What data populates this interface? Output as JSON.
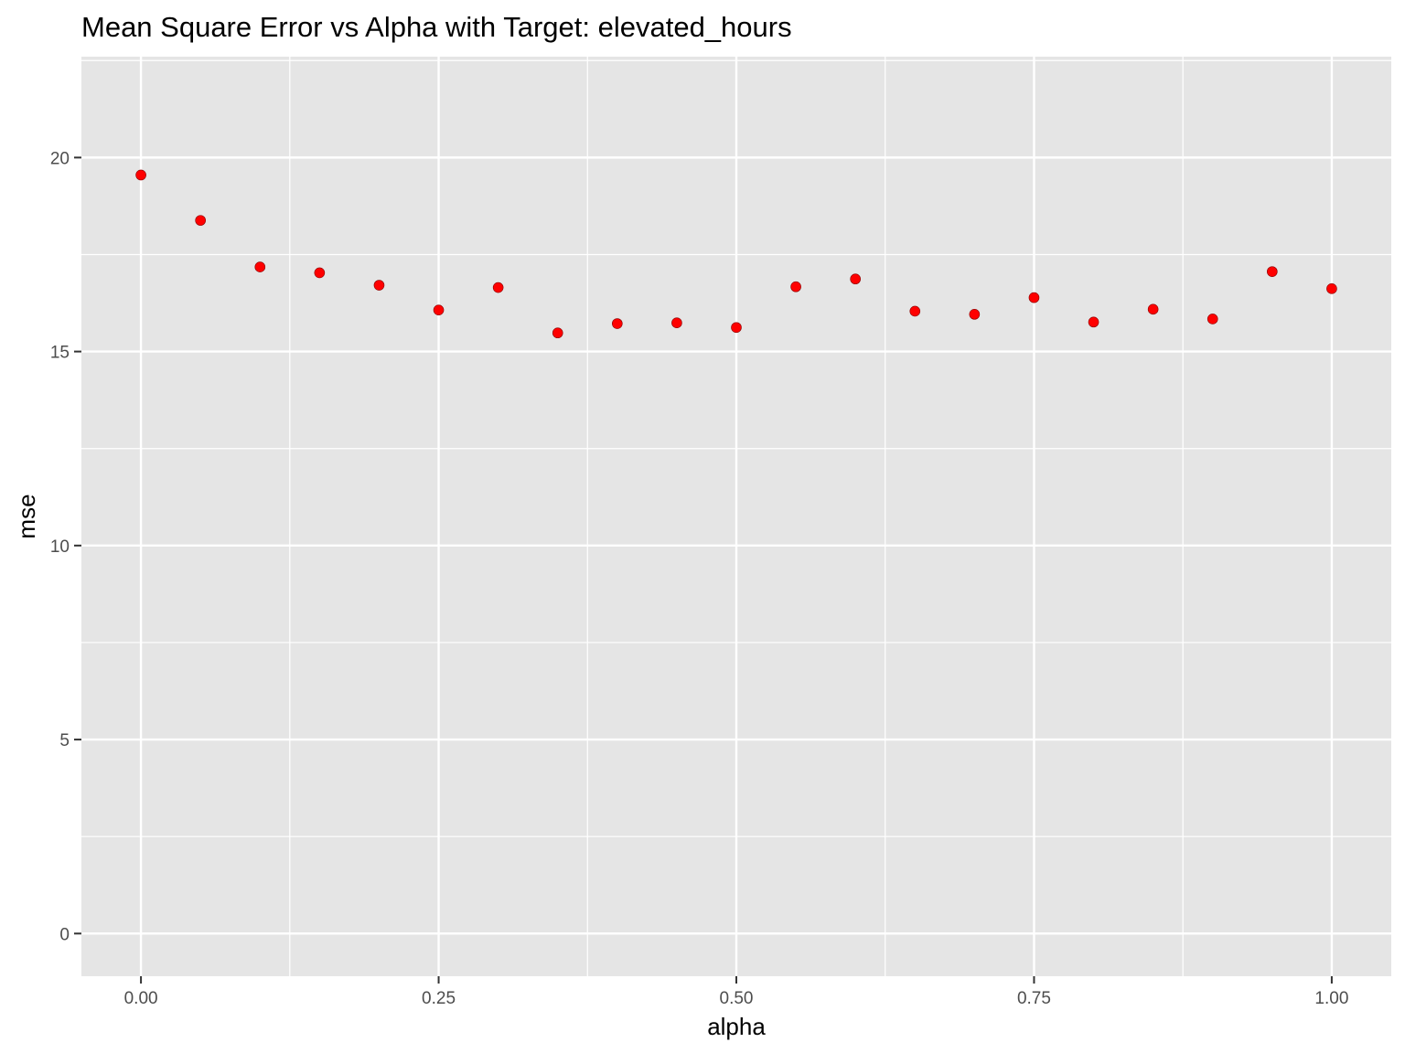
{
  "chart_data": {
    "type": "scatter",
    "title": "Mean Square Error vs Alpha with Target: elevated_hours",
    "xlabel": "alpha",
    "ylabel": "mse",
    "xlim": [
      -0.05,
      1.05
    ],
    "ylim": [
      -1.1,
      22.6
    ],
    "x_ticks": [
      0,
      0.25,
      0.5,
      0.75,
      1
    ],
    "x_tick_labels": [
      "0.00",
      "0.25",
      "0.50",
      "0.75",
      "1.00"
    ],
    "y_ticks": [
      0,
      5,
      10,
      15,
      20
    ],
    "y_tick_labels": [
      "0",
      "5",
      "10",
      "15",
      "20"
    ],
    "grid": true,
    "point_color": "#ff0000",
    "panel_color": "#e5e5e5",
    "x": [
      0,
      0.05,
      0.1,
      0.15,
      0.2,
      0.25,
      0.3,
      0.35,
      0.4,
      0.45,
      0.5,
      0.55,
      0.6,
      0.65,
      0.7,
      0.75,
      0.8,
      0.85,
      0.9,
      0.95,
      1.0
    ],
    "y": [
      19.55,
      18.38,
      17.18,
      17.03,
      16.71,
      16.07,
      16.65,
      15.48,
      15.72,
      15.74,
      15.62,
      16.67,
      16.87,
      16.04,
      15.96,
      16.39,
      15.76,
      16.09,
      15.84,
      17.06,
      16.62
    ]
  }
}
